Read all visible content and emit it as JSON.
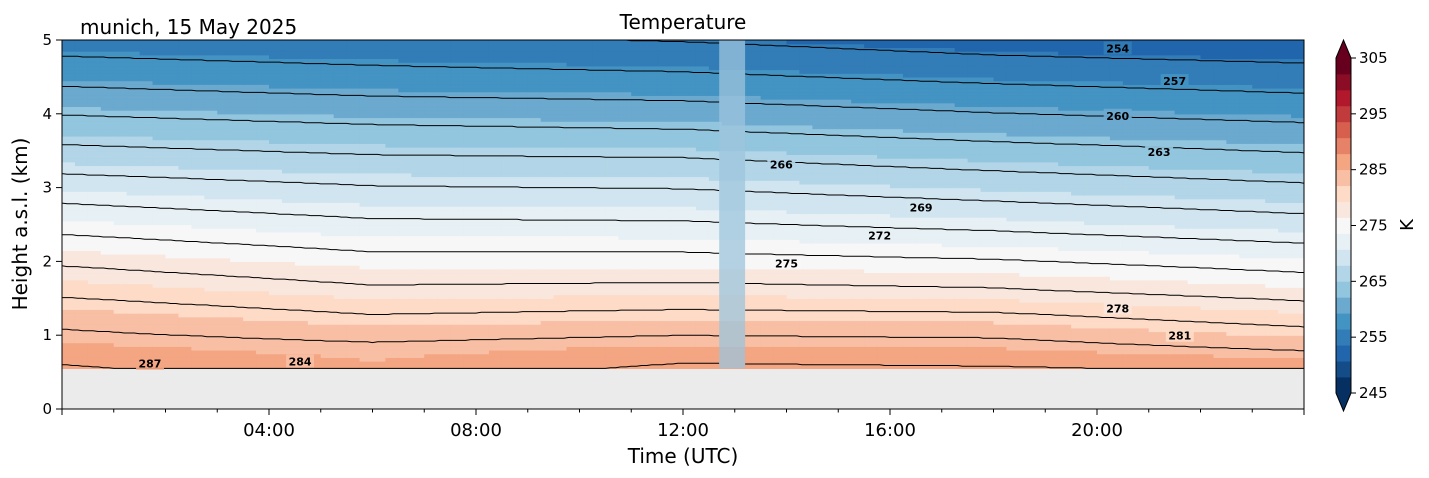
{
  "chart_data": {
    "type": "heatmap",
    "title": "Temperature",
    "subtitle": "munich, 15 May 2025",
    "xlabel": "Time (UTC)",
    "ylabel": "Height a.s.l. (km)",
    "x_unit": "hours",
    "xlim": [
      0,
      24
    ],
    "ylim": [
      0,
      5
    ],
    "x_ticks": [
      {
        "value": 4,
        "label": "04:00"
      },
      {
        "value": 8,
        "label": "08:00"
      },
      {
        "value": 12,
        "label": "12:00"
      },
      {
        "value": 16,
        "label": "16:00"
      },
      {
        "value": 20,
        "label": "20:00"
      }
    ],
    "y_ticks": [
      0,
      1,
      2,
      3,
      4,
      5
    ],
    "data_bottom_km": 0.55,
    "gap_hours": [
      12.7,
      13.2
    ],
    "colorbar": {
      "label": "K",
      "range": [
        245,
        305
      ],
      "ticks": [
        245,
        255,
        265,
        275,
        285,
        295,
        305
      ],
      "extend": "both",
      "colors": [
        "#053061",
        "#134c87",
        "#2166ac",
        "#327cb7",
        "#4393c3",
        "#6ba9cf",
        "#92c5de",
        "#b2d5e7",
        "#d1e5f0",
        "#e7f0f4",
        "#f7f7f7",
        "#f9e6dd",
        "#fddbc7",
        "#f8bfa4",
        "#f4a582",
        "#e58267",
        "#d6604d",
        "#c13b3d",
        "#b2182b",
        "#8a0c25",
        "#67001f"
      ]
    },
    "temperature_profile": {
      "heights_km": [
        0.55,
        0.9,
        1.25,
        1.6,
        2.05,
        2.5,
        2.95,
        3.4,
        3.85,
        4.3,
        4.75,
        5.0
      ],
      "times_h": [
        0,
        6,
        12,
        18,
        24
      ],
      "values_K": [
        [
          287.3,
          285.5,
          287.5,
          287.2,
          286.5
        ],
        [
          285.0,
          284.0,
          284.8,
          284.5,
          282.8
        ],
        [
          283.0,
          281.2,
          281.8,
          281.5,
          279.8
        ],
        [
          280.3,
          278.5,
          278.8,
          278.3,
          276.8
        ],
        [
          277.2,
          275.5,
          275.5,
          274.8,
          273.5
        ],
        [
          274.0,
          272.5,
          272.3,
          271.3,
          270.0
        ],
        [
          270.8,
          269.5,
          269.2,
          268.0,
          266.8
        ],
        [
          267.3,
          266.3,
          266.0,
          264.7,
          263.5
        ],
        [
          264.0,
          263.0,
          262.5,
          261.2,
          260.2
        ],
        [
          260.5,
          259.5,
          259.0,
          257.8,
          256.8
        ],
        [
          257.2,
          256.3,
          255.6,
          254.3,
          253.5
        ],
        [
          255.3,
          254.5,
          253.8,
          252.5,
          251.6
        ]
      ]
    },
    "contour_levels": [
      254,
      257,
      260,
      263,
      266,
      269,
      272,
      275,
      278,
      281,
      284,
      287
    ],
    "contour_labels": [
      {
        "level": 254,
        "time_h": 20.4,
        "height_km": 4.87,
        "text": "254"
      },
      {
        "level": 257,
        "time_h": 21.5,
        "height_km": 4.43,
        "text": "257"
      },
      {
        "level": 260,
        "time_h": 20.4,
        "height_km": 3.96,
        "text": "260"
      },
      {
        "level": 263,
        "time_h": 21.2,
        "height_km": 3.47,
        "text": "263"
      },
      {
        "level": 266,
        "time_h": 13.9,
        "height_km": 3.3,
        "text": "266"
      },
      {
        "level": 269,
        "time_h": 16.6,
        "height_km": 2.72,
        "text": "269"
      },
      {
        "level": 272,
        "time_h": 15.8,
        "height_km": 2.34,
        "text": "272"
      },
      {
        "level": 275,
        "time_h": 14.0,
        "height_km": 1.96,
        "text": "275"
      },
      {
        "level": 278,
        "time_h": 20.4,
        "height_km": 1.35,
        "text": "278"
      },
      {
        "level": 281,
        "time_h": 21.6,
        "height_km": 0.98,
        "text": "281"
      },
      {
        "level": 284,
        "time_h": 4.6,
        "height_km": 0.63,
        "text": "284"
      },
      {
        "level": 287,
        "time_h": 1.7,
        "height_km": 0.6,
        "text": "287"
      }
    ]
  }
}
